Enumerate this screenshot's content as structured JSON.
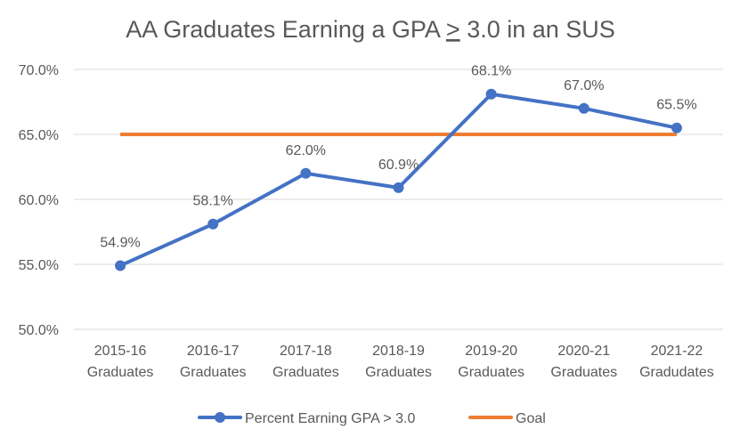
{
  "chart_data": {
    "type": "line",
    "title_parts": [
      "AA Graduates Earning a GPA ",
      ">",
      " 3.0 in an SUS"
    ],
    "categories": [
      [
        "2015-16",
        "Graduates"
      ],
      [
        "2016-17",
        "Graduates"
      ],
      [
        "2017-18",
        "Graduates"
      ],
      [
        "2018-19",
        "Graduates"
      ],
      [
        "2019-20",
        "Graduates"
      ],
      [
        "2020-21",
        "Graduates"
      ],
      [
        "2021-22",
        "Gradudates"
      ]
    ],
    "ylim": [
      50,
      70
    ],
    "yticks": [
      50,
      55,
      60,
      65,
      70
    ],
    "ytick_labels": [
      "50.0%",
      "55.0%",
      "60.0%",
      "65.0%",
      "70.0%"
    ],
    "grid": true,
    "legend_position": "bottom",
    "series": [
      {
        "name": "Percent Earning GPA > 3.0",
        "values": [
          54.9,
          58.1,
          62.0,
          60.9,
          68.1,
          67.0,
          65.5
        ],
        "labels": [
          "54.9%",
          "58.1%",
          "62.0%",
          "60.9%",
          "68.1%",
          "67.0%",
          "65.5%"
        ],
        "color": "#4472C4",
        "markers": true
      },
      {
        "name": "Goal",
        "values": [
          65,
          65,
          65,
          65,
          65,
          65,
          65
        ],
        "color": "#ED7D31",
        "markers": false
      }
    ]
  }
}
